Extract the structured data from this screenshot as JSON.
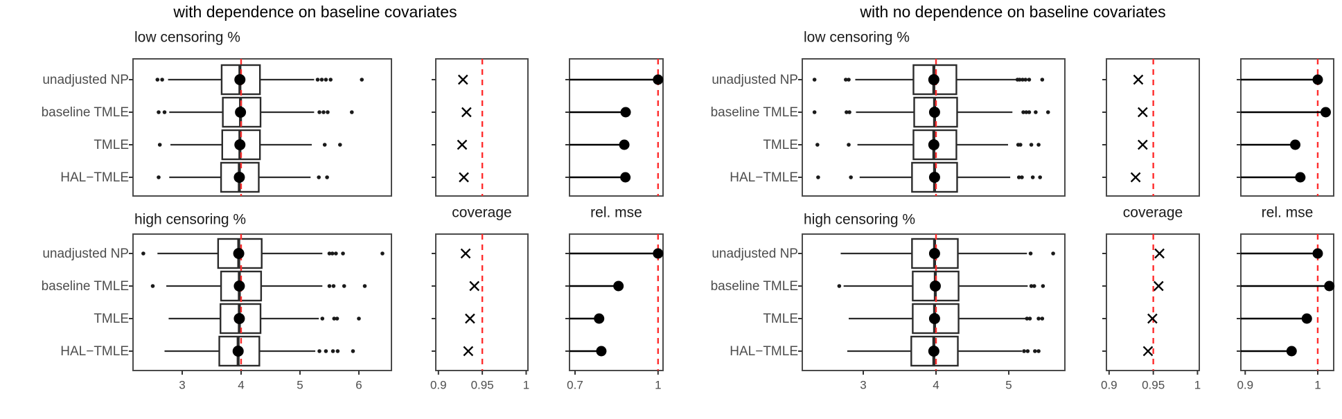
{
  "figure": {
    "left_title": "with dependence on baseline covariates",
    "right_title": "with no dependence on baseline covariates"
  },
  "colors": {
    "reference_red": "#ff2d2d",
    "box_stroke": "#2b2b2b",
    "point_black": "#000000",
    "axis_text": "#4d4d4d",
    "panel_border": "#4a4a4a",
    "title_text": "#000000"
  },
  "chart_data": {
    "type": "boxplot",
    "estimators": [
      "unadjusted NP",
      "baseline TMLE",
      "TMLE",
      "HAL−TMLE"
    ],
    "reference_lines": {
      "estimand": 4,
      "coverage": 0.95,
      "rel_mse": 1
    },
    "groups": [
      {
        "id": "dependence",
        "title": "with dependence on baseline covariates",
        "panel_labels": {
          "low": "low censoring %",
          "high": "high censoring %",
          "coverage": "coverage",
          "rel_mse": "rel. mse"
        },
        "est_axis": {
          "min": 2.165,
          "max": 6.553,
          "tick_values": [
            3,
            4,
            5,
            6
          ],
          "tick_labels": [
            "3",
            "4",
            "5",
            "6"
          ]
        },
        "coverage_axis": {
          "min": 0.897,
          "max": 1.002,
          "tick_values": [
            0.9,
            0.95,
            1
          ],
          "tick_labels": [
            "0.9",
            "0.95",
            "1"
          ]
        },
        "relmse_axis": {
          "min": 0.68,
          "max": 1.018,
          "tick_values": [
            0.7,
            1
          ],
          "tick_labels": [
            "0.7",
            "1"
          ]
        },
        "censoring_levels": [
          {
            "level": "low",
            "rows": [
              {
                "estimator": "unadjusted NP",
                "box": {
                  "lo": 2.76,
                  "q1": 3.67,
                  "med": 3.98,
                  "q3": 4.32,
                  "hi": 5.24,
                  "out_left": [
                    2.58,
                    2.66
                  ],
                  "out_right": [
                    5.3,
                    5.37,
                    5.44,
                    5.52,
                    6.05
                  ]
                },
                "coverage": 0.928,
                "rel_mse": 1.0
              },
              {
                "estimator": "baseline TMLE",
                "box": {
                  "lo": 2.78,
                  "q1": 3.69,
                  "med": 3.99,
                  "q3": 4.33,
                  "hi": 5.24,
                  "out_left": [
                    2.6,
                    2.7
                  ],
                  "out_right": [
                    5.33,
                    5.4,
                    5.47,
                    5.88
                  ]
                },
                "coverage": 0.932,
                "rel_mse": 0.883
              },
              {
                "estimator": "TMLE",
                "box": {
                  "lo": 2.8,
                  "q1": 3.68,
                  "med": 3.98,
                  "q3": 4.32,
                  "hi": 5.2,
                  "out_left": [
                    2.62
                  ],
                  "out_right": [
                    5.42,
                    5.68
                  ]
                },
                "coverage": 0.927,
                "rel_mse": 0.878
              },
              {
                "estimator": "HAL−TMLE",
                "box": {
                  "lo": 2.78,
                  "q1": 3.66,
                  "med": 3.97,
                  "q3": 4.3,
                  "hi": 5.18,
                  "out_left": [
                    2.6
                  ],
                  "out_right": [
                    5.32,
                    5.46
                  ]
                },
                "coverage": 0.929,
                "rel_mse": 0.882
              }
            ]
          },
          {
            "level": "high",
            "rows": [
              {
                "estimator": "unadjusted NP",
                "box": {
                  "lo": 2.58,
                  "q1": 3.61,
                  "med": 3.96,
                  "q3": 4.35,
                  "hi": 5.38,
                  "out_left": [
                    2.34
                  ],
                  "out_right": [
                    5.5,
                    5.55,
                    5.61,
                    5.73,
                    6.4
                  ]
                },
                "coverage": 0.931,
                "rel_mse": 1.0
              },
              {
                "estimator": "baseline TMLE",
                "box": {
                  "lo": 2.73,
                  "q1": 3.66,
                  "med": 3.97,
                  "q3": 4.34,
                  "hi": 5.38,
                  "out_left": [
                    2.5
                  ],
                  "out_right": [
                    5.5,
                    5.57,
                    5.75,
                    6.1
                  ]
                },
                "coverage": 0.941,
                "rel_mse": 0.857
              },
              {
                "estimator": "TMLE",
                "box": {
                  "lo": 2.77,
                  "q1": 3.65,
                  "med": 3.97,
                  "q3": 4.33,
                  "hi": 5.32,
                  "out_left": [],
                  "out_right": [
                    5.38,
                    5.58,
                    5.63,
                    6.0
                  ]
                },
                "coverage": 0.936,
                "rel_mse": 0.787
              },
              {
                "estimator": "HAL−TMLE",
                "box": {
                  "lo": 2.7,
                  "q1": 3.63,
                  "med": 3.95,
                  "q3": 4.31,
                  "hi": 5.26,
                  "out_left": [],
                  "out_right": [
                    5.33,
                    5.44,
                    5.56,
                    5.64,
                    5.9
                  ]
                },
                "coverage": 0.934,
                "rel_mse": 0.795
              }
            ]
          }
        ]
      },
      {
        "id": "no-dependence",
        "title": "with no dependence on baseline covariates",
        "panel_labels": {
          "low": "low censoring %",
          "high": "high censoring %",
          "coverage": "coverage",
          "rel_mse": "rel. mse"
        },
        "est_axis": {
          "min": 2.162,
          "max": 5.771,
          "tick_values": [
            3,
            4,
            5
          ],
          "tick_labels": [
            "3",
            "4",
            "5"
          ]
        },
        "coverage_axis": {
          "min": 0.897,
          "max": 1.002,
          "tick_values": [
            0.9,
            0.95,
            1
          ],
          "tick_labels": [
            "0.9",
            "0.95",
            "1"
          ]
        },
        "relmse_axis": {
          "min": 0.894,
          "max": 1.022,
          "tick_values": [
            0.9,
            1
          ],
          "tick_labels": [
            "0.9",
            "1"
          ]
        },
        "censoring_levels": [
          {
            "level": "low",
            "rows": [
              {
                "estimator": "unadjusted NP",
                "box": {
                  "lo": 2.89,
                  "q1": 3.69,
                  "med": 3.97,
                  "q3": 4.28,
                  "hi": 5.1,
                  "out_left": [
                    2.33,
                    2.76,
                    2.8
                  ],
                  "out_right": [
                    5.12,
                    5.15,
                    5.19,
                    5.23,
                    5.28,
                    5.46
                  ]
                },
                "coverage": 0.933,
                "rel_mse": 1.0
              },
              {
                "estimator": "baseline TMLE",
                "box": {
                  "lo": 2.9,
                  "q1": 3.7,
                  "med": 3.98,
                  "q3": 4.29,
                  "hi": 5.05,
                  "out_left": [
                    2.33,
                    2.77,
                    2.81
                  ],
                  "out_right": [
                    5.2,
                    5.24,
                    5.28,
                    5.37,
                    5.54
                  ]
                },
                "coverage": 0.938,
                "rel_mse": 1.011
              },
              {
                "estimator": "TMLE",
                "box": {
                  "lo": 2.92,
                  "q1": 3.69,
                  "med": 3.97,
                  "q3": 4.28,
                  "hi": 4.99,
                  "out_left": [
                    2.37,
                    2.8
                  ],
                  "out_right": [
                    5.13,
                    5.16,
                    5.31,
                    5.41
                  ]
                },
                "coverage": 0.938,
                "rel_mse": 0.969
              },
              {
                "estimator": "HAL−TMLE",
                "box": {
                  "lo": 2.95,
                  "q1": 3.67,
                  "med": 3.98,
                  "q3": 4.29,
                  "hi": 5.02,
                  "out_left": [
                    2.38,
                    2.83
                  ],
                  "out_right": [
                    5.14,
                    5.18,
                    5.33,
                    5.43
                  ]
                },
                "coverage": 0.93,
                "rel_mse": 0.976
              }
            ]
          },
          {
            "level": "high",
            "rows": [
              {
                "estimator": "unadjusted NP",
                "box": {
                  "lo": 2.69,
                  "q1": 3.67,
                  "med": 3.98,
                  "q3": 4.3,
                  "hi": 5.25,
                  "out_left": [],
                  "out_right": [
                    5.3,
                    5.61
                  ]
                },
                "coverage": 0.957,
                "rel_mse": 1.0
              },
              {
                "estimator": "baseline TMLE",
                "box": {
                  "lo": 2.73,
                  "q1": 3.68,
                  "med": 3.99,
                  "q3": 4.31,
                  "hi": 5.26,
                  "out_left": [
                    2.67
                  ],
                  "out_right": [
                    5.31,
                    5.35,
                    5.47
                  ]
                },
                "coverage": 0.956,
                "rel_mse": 1.016
              },
              {
                "estimator": "TMLE",
                "box": {
                  "lo": 2.8,
                  "q1": 3.68,
                  "med": 3.98,
                  "q3": 4.31,
                  "hi": 5.23,
                  "out_left": [],
                  "out_right": [
                    5.25,
                    5.29,
                    5.41,
                    5.46
                  ]
                },
                "coverage": 0.949,
                "rel_mse": 0.985
              },
              {
                "estimator": "HAL−TMLE",
                "box": {
                  "lo": 2.78,
                  "q1": 3.66,
                  "med": 3.97,
                  "q3": 4.3,
                  "hi": 5.18,
                  "out_left": [],
                  "out_right": [
                    5.21,
                    5.26,
                    5.36,
                    5.41
                  ]
                },
                "coverage": 0.944,
                "rel_mse": 0.964
              }
            ]
          }
        ]
      }
    ]
  }
}
